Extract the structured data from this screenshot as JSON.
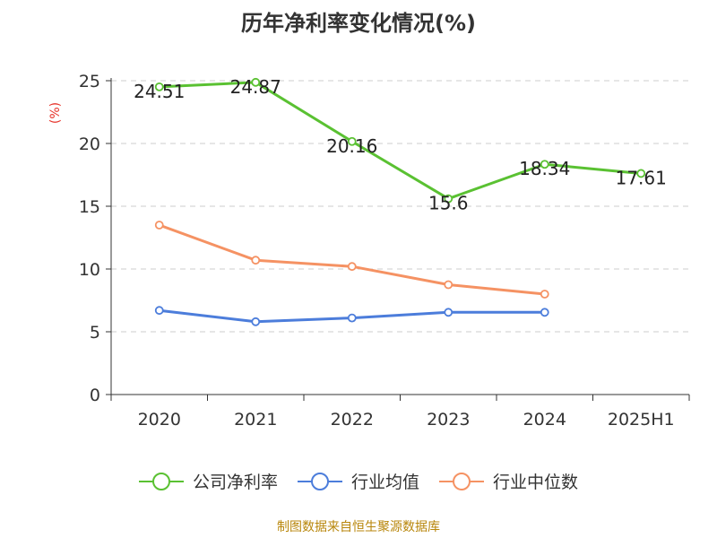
{
  "title": "历年净利率变化情况(%)",
  "source": "制图数据来自恒生聚源数据库",
  "y_unit": "(%)",
  "colors": {
    "company": "#5ac132",
    "industry_avg": "#4c7ddb",
    "industry_median": "#f59263",
    "unit_label": "#e6332a",
    "axis": "#333333",
    "grid": "#cccccc",
    "source_text": "#b8860b"
  },
  "chart_data": {
    "type": "line",
    "title": "历年净利率变化情况(%)",
    "xlabel": "",
    "ylabel": "(%)",
    "categories": [
      "2020",
      "2021",
      "2022",
      "2023",
      "2024",
      "2025H1"
    ],
    "ylim": [
      0,
      25
    ],
    "yticks": [
      0,
      5,
      10,
      15,
      20,
      25
    ],
    "grid": true,
    "legend_position": "bottom",
    "series": [
      {
        "name": "公司净利率",
        "color": "#5ac132",
        "show_labels": true,
        "values": [
          24.51,
          24.87,
          20.16,
          15.6,
          18.34,
          17.61
        ]
      },
      {
        "name": "行业均值",
        "color": "#4c7ddb",
        "show_labels": false,
        "values": [
          6.7,
          5.8,
          6.1,
          6.55,
          6.55,
          null
        ]
      },
      {
        "name": "行业中位数",
        "color": "#f59263",
        "show_labels": false,
        "values": [
          13.5,
          10.7,
          10.2,
          8.75,
          8.0,
          null
        ]
      }
    ]
  }
}
